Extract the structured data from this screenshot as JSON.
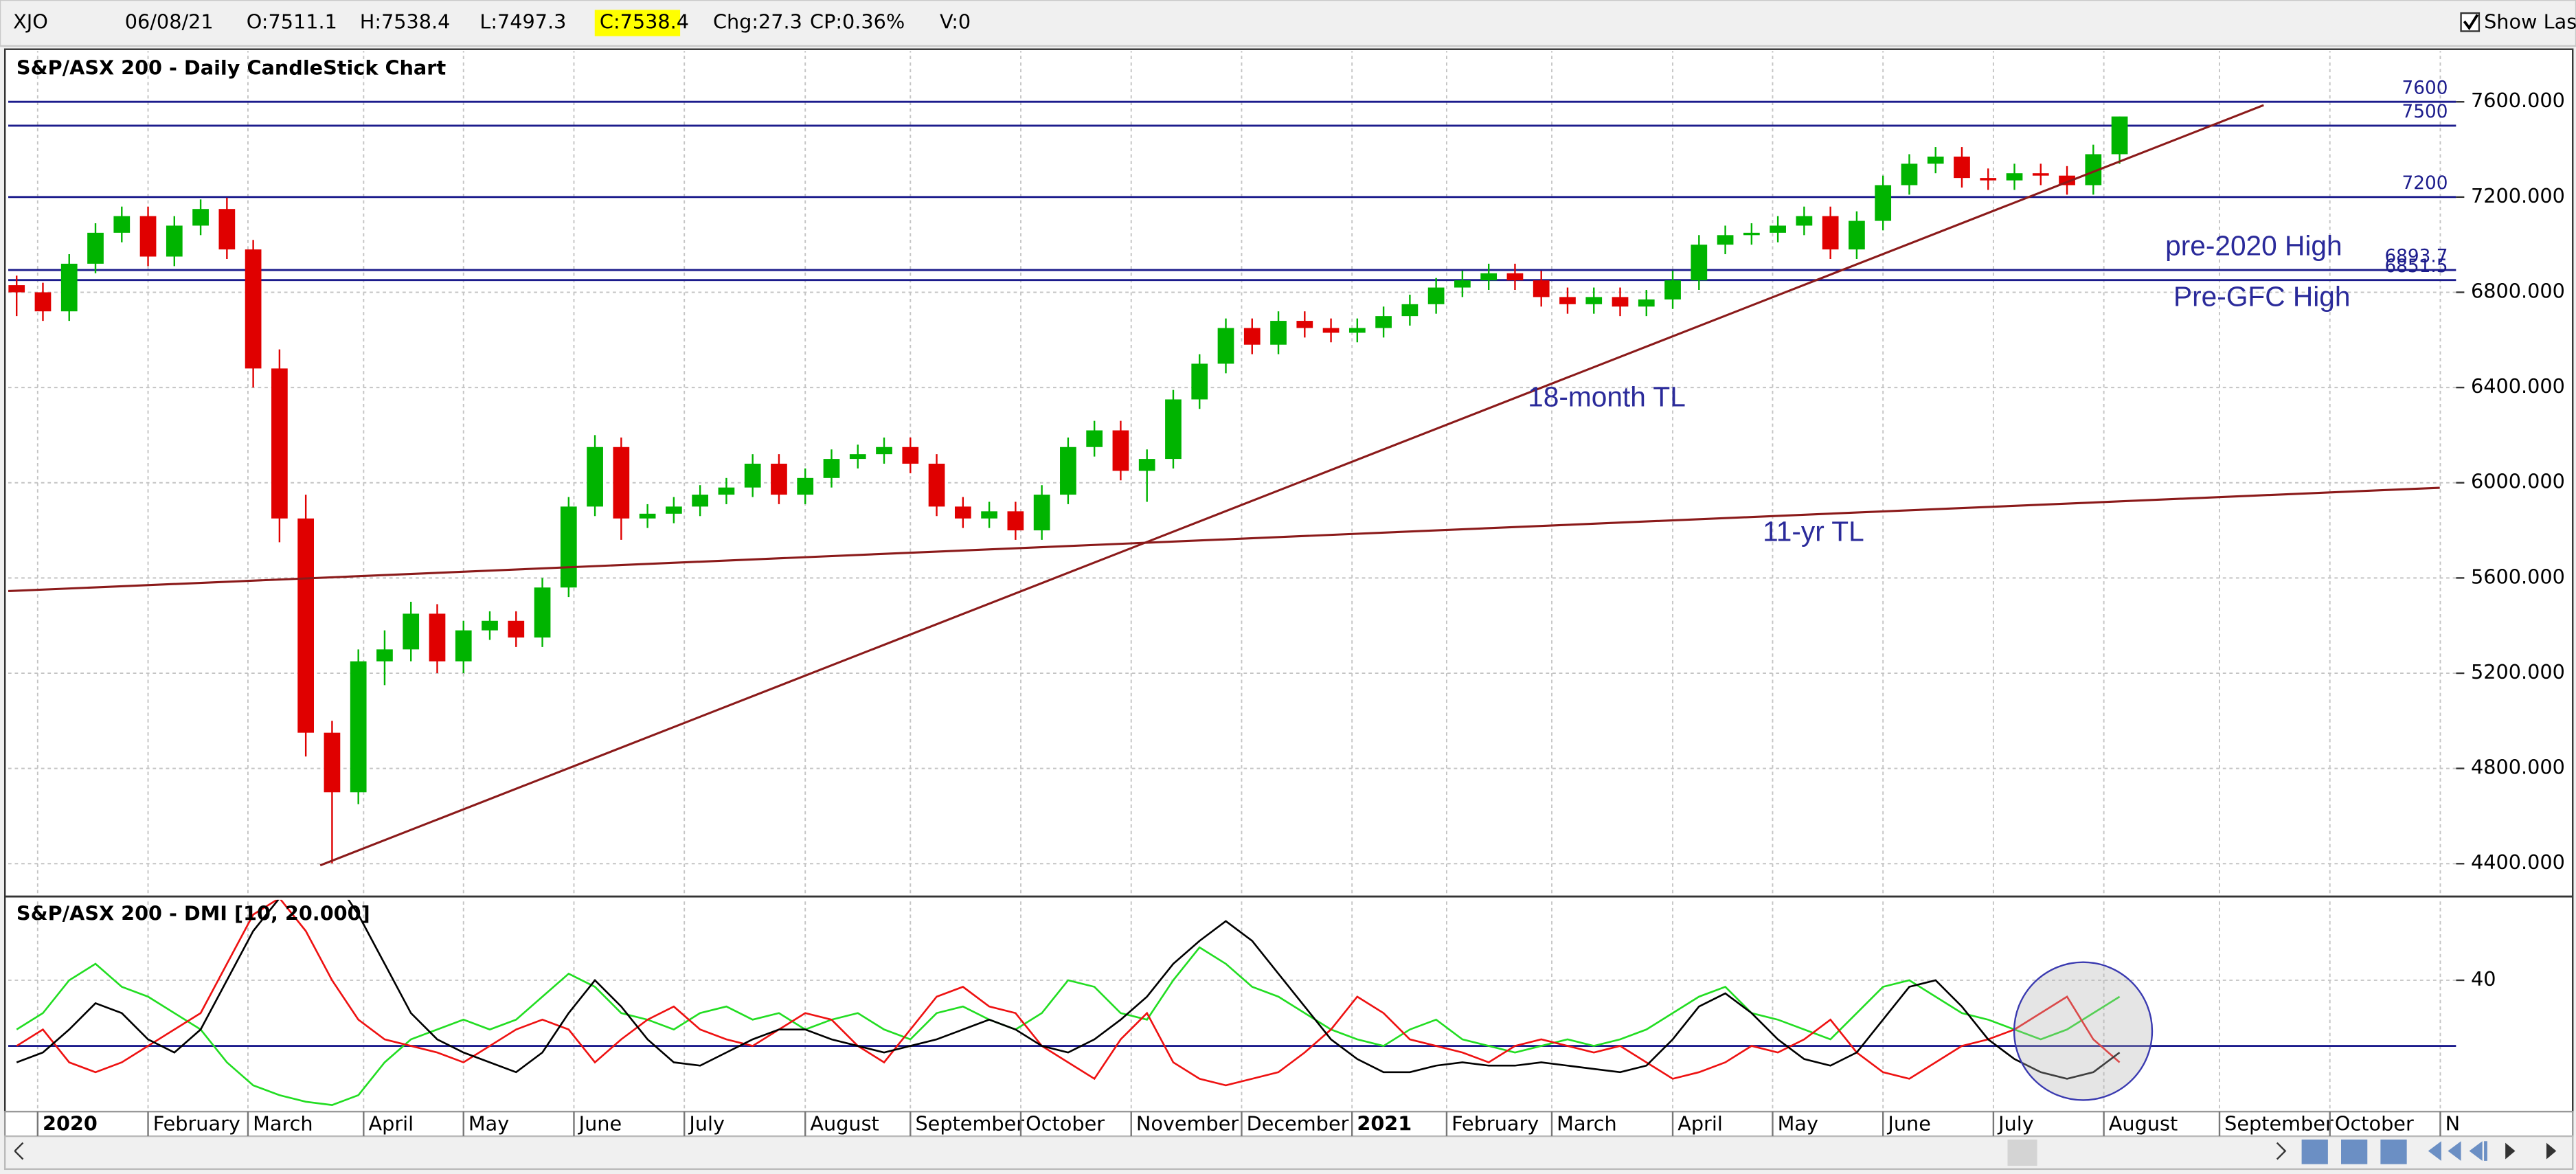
{
  "header": {
    "symbol": "XJO",
    "date": "06/08/21",
    "open": "O:7511.1",
    "high": "H:7538.4",
    "low": "L:7497.3",
    "close": "C:7538.4",
    "change": "Chg:27.3",
    "change_pct": "CP:0.36%",
    "volume": "V:0",
    "show_last": "Show Last"
  },
  "chart_data": [
    {
      "type": "candlestick",
      "title": "S&P/ASX 200 - Daily CandleStick Chart",
      "x": [
        -4,
        1,
        6,
        11,
        16,
        21,
        26,
        31,
        36,
        41,
        46,
        51,
        56,
        61,
        66,
        71,
        76,
        81,
        86,
        91,
        96,
        101,
        106,
        111,
        116,
        121,
        126,
        131,
        136,
        141,
        146,
        151,
        156,
        161,
        166,
        171,
        176,
        181,
        186,
        191,
        196,
        201,
        206,
        211,
        216,
        221,
        226,
        231,
        236,
        241,
        246,
        251,
        256,
        261,
        266,
        271,
        276,
        281,
        286,
        291,
        296,
        301,
        306,
        311,
        316,
        321,
        326,
        331,
        336,
        341,
        346,
        351,
        356,
        361,
        366,
        371,
        376,
        381,
        386,
        391,
        396
      ],
      "open": [
        6830,
        6800,
        6720,
        6920,
        7050,
        7120,
        6950,
        7080,
        7150,
        6980,
        6480,
        5850,
        4950,
        4700,
        5250,
        5300,
        5450,
        5250,
        5380,
        5420,
        5350,
        5560,
        5900,
        6150,
        5850,
        5870,
        5900,
        5950,
        5980,
        6080,
        5950,
        6020,
        6100,
        6120,
        6150,
        6080,
        5900,
        5850,
        5880,
        5800,
        5950,
        6150,
        6220,
        6050,
        6100,
        6350,
        6500,
        6650,
        6580,
        6680,
        6650,
        6630,
        6650,
        6700,
        6750,
        6820,
        6850,
        6880,
        6850,
        6780,
        6750,
        6780,
        6740,
        6770,
        6850,
        7000,
        7040,
        7050,
        7080,
        7120,
        6980,
        7100,
        7250,
        7340,
        7370,
        7280,
        7270,
        7300,
        7290,
        7250,
        7380
      ],
      "high": [
        6870,
        6840,
        6960,
        7090,
        7160,
        7160,
        7120,
        7190,
        7197,
        7020,
        6560,
        5950,
        5000,
        5300,
        5380,
        5500,
        5490,
        5420,
        5460,
        5460,
        5600,
        5940,
        6200,
        6190,
        5910,
        5940,
        5990,
        6020,
        6120,
        6120,
        6060,
        6140,
        6160,
        6190,
        6190,
        6120,
        5940,
        5920,
        5920,
        5990,
        6190,
        6260,
        6260,
        6140,
        6390,
        6540,
        6690,
        6690,
        6720,
        6720,
        6690,
        6690,
        6740,
        6790,
        6860,
        6890,
        6920,
        6920,
        6890,
        6820,
        6820,
        6820,
        6810,
        6890,
        7040,
        7080,
        7090,
        7120,
        7160,
        7160,
        7140,
        7290,
        7380,
        7410,
        7410,
        7320,
        7340,
        7340,
        7330,
        7420,
        7538.4
      ],
      "low": [
        6700,
        6680,
        6680,
        6880,
        7010,
        6910,
        6910,
        7040,
        6940,
        6400,
        5750,
        4850,
        4402,
        4650,
        5150,
        5250,
        5200,
        5200,
        5340,
        5310,
        5310,
        5520,
        5860,
        5760,
        5810,
        5830,
        5860,
        5910,
        5940,
        5910,
        5910,
        5980,
        6060,
        6080,
        6040,
        5860,
        5810,
        5810,
        5760,
        5760,
        5910,
        6110,
        6010,
        5920,
        6060,
        6310,
        6460,
        6540,
        6540,
        6610,
        6590,
        6590,
        6610,
        6660,
        6710,
        6780,
        6810,
        6810,
        6740,
        6710,
        6710,
        6700,
        6700,
        6730,
        6810,
        6960,
        7000,
        7010,
        7040,
        6940,
        6940,
        7060,
        7210,
        7300,
        7240,
        7230,
        7230,
        7250,
        7210,
        7210,
        7340
      ],
      "close": [
        6800,
        6720,
        6920,
        7050,
        7120,
        6950,
        7080,
        7150,
        6980,
        6480,
        5850,
        4950,
        4700,
        5250,
        5300,
        5450,
        5250,
        5380,
        5420,
        5350,
        5560,
        5900,
        6150,
        5850,
        5870,
        5900,
        5950,
        5980,
        6080,
        5950,
        6020,
        6100,
        6120,
        6150,
        6080,
        5900,
        5850,
        5880,
        5800,
        5950,
        6150,
        6220,
        6050,
        6100,
        6350,
        6500,
        6650,
        6580,
        6680,
        6650,
        6630,
        6650,
        6700,
        6750,
        6820,
        6850,
        6880,
        6850,
        6780,
        6750,
        6780,
        6740,
        6770,
        6850,
        7000,
        7040,
        7050,
        7080,
        7120,
        6980,
        7100,
        7250,
        7340,
        7370,
        7280,
        7270,
        7300,
        7290,
        7250,
        7380,
        7538.4
      ],
      "up_color": "#00b400",
      "down_color": "#e00000",
      "xlim": [
        -5.6,
        460
      ],
      "ylim": [
        4269,
        7807
      ],
      "yticks": [
        {
          "value": 4400,
          "label": "4400.000"
        },
        {
          "value": 4800,
          "label": "4800.000"
        },
        {
          "value": 5200,
          "label": "5200.000"
        },
        {
          "value": 5600,
          "label": "5600.000"
        },
        {
          "value": 6000,
          "label": "6000.000"
        },
        {
          "value": 6400,
          "label": "6400.000"
        },
        {
          "value": 6800,
          "label": "6800.000"
        },
        {
          "value": 7200,
          "label": "7200.000"
        },
        {
          "value": 7600,
          "label": "7600.000"
        }
      ],
      "grid": true,
      "hlines": {
        "values": [
          7600,
          7500,
          7200,
          6893.7,
          6851.5
        ],
        "color": "#1c1c8c"
      },
      "trendlines": [
        {
          "x": [
            53.75,
            423.4
          ],
          "y": [
            4393,
            7586
          ],
          "color": "#8b1a1a"
        },
        {
          "x": [
            -5.6,
            456.9
          ],
          "y": [
            5545,
            5979
          ],
          "color": "#8b1a1a"
        }
      ],
      "annotations": [
        "pre-2020 High",
        "Pre-GFC High",
        "18-month TL",
        "11-yr TL"
      ]
    },
    {
      "type": "line",
      "title": "S&P/ASX 200 - DMI [10, 20.000]",
      "x": [
        -4,
        1,
        6,
        11,
        16,
        21,
        26,
        31,
        36,
        41,
        46,
        51,
        56,
        61,
        66,
        71,
        76,
        81,
        86,
        91,
        96,
        101,
        106,
        111,
        116,
        121,
        126,
        131,
        136,
        141,
        146,
        151,
        156,
        161,
        166,
        171,
        176,
        181,
        186,
        191,
        196,
        201,
        206,
        211,
        216,
        221,
        226,
        231,
        236,
        241,
        246,
        251,
        256,
        261,
        266,
        271,
        276,
        281,
        286,
        291,
        296,
        301,
        306,
        311,
        316,
        321,
        326,
        331,
        336,
        341,
        346,
        351,
        356,
        361,
        366,
        371,
        376,
        381,
        386,
        391,
        396
      ],
      "series": [
        {
          "color": "#22dd22",
          "values": [
            25,
            30,
            40,
            45,
            38,
            35,
            30,
            25,
            15,
            8,
            5,
            3,
            2,
            5,
            15,
            22,
            25,
            28,
            25,
            28,
            35,
            42,
            38,
            30,
            28,
            25,
            30,
            32,
            28,
            30,
            25,
            28,
            30,
            25,
            22,
            30,
            32,
            28,
            25,
            30,
            40,
            38,
            30,
            28,
            40,
            50,
            45,
            38,
            35,
            30,
            25,
            22,
            20,
            25,
            28,
            22,
            20,
            18,
            20,
            22,
            20,
            22,
            25,
            30,
            35,
            38,
            30,
            28,
            25,
            22,
            30,
            38,
            40,
            35,
            30,
            28,
            25,
            22,
            25,
            30,
            35
          ]
        },
        {
          "color": "#ee1111",
          "values": [
            20,
            25,
            15,
            12,
            15,
            20,
            25,
            30,
            45,
            60,
            65,
            55,
            40,
            28,
            22,
            20,
            18,
            15,
            20,
            25,
            28,
            25,
            15,
            22,
            28,
            32,
            25,
            22,
            20,
            25,
            30,
            28,
            20,
            15,
            25,
            35,
            38,
            32,
            30,
            20,
            15,
            10,
            22,
            30,
            15,
            10,
            8,
            10,
            12,
            18,
            25,
            35,
            30,
            22,
            20,
            18,
            15,
            20,
            22,
            20,
            18,
            20,
            15,
            10,
            12,
            15,
            20,
            18,
            22,
            28,
            18,
            12,
            10,
            15,
            20,
            22,
            25,
            30,
            35,
            22,
            15
          ]
        },
        {
          "color": "#000000",
          "values": [
            15,
            18,
            25,
            33,
            30,
            22,
            18,
            25,
            40,
            55,
            65,
            70,
            72,
            60,
            45,
            30,
            22,
            18,
            15,
            12,
            18,
            30,
            40,
            32,
            22,
            15,
            14,
            18,
            22,
            25,
            25,
            22,
            20,
            18,
            20,
            22,
            25,
            28,
            25,
            20,
            18,
            22,
            28,
            35,
            45,
            52,
            58,
            52,
            42,
            32,
            22,
            16,
            12,
            12,
            14,
            15,
            14,
            14,
            15,
            14,
            13,
            12,
            14,
            22,
            32,
            36,
            30,
            22,
            16,
            14,
            18,
            28,
            38,
            40,
            32,
            22,
            16,
            12,
            10,
            12,
            18
          ]
        }
      ],
      "xlim": [
        -5.6,
        460
      ],
      "ylim": [
        0,
        65
      ],
      "yticks": [
        40
      ],
      "grid": true,
      "hlines": {
        "values": [
          20
        ],
        "color": "#1c1c8c"
      },
      "xticks": [
        {
          "value": 0,
          "label": "2020"
        },
        {
          "value": 21,
          "label": "February"
        },
        {
          "value": 40,
          "label": "March"
        },
        {
          "value": 62,
          "label": "April"
        },
        {
          "value": 81,
          "label": "May"
        },
        {
          "value": 102,
          "label": "June"
        },
        {
          "value": 123,
          "label": "July"
        },
        {
          "value": 146,
          "label": "August"
        },
        {
          "value": 166,
          "label": "September"
        },
        {
          "value": 187,
          "label": "October"
        },
        {
          "value": 208,
          "label": "November"
        },
        {
          "value": 229,
          "label": "December"
        },
        {
          "value": 250,
          "label": "2021"
        },
        {
          "value": 268,
          "label": "February"
        },
        {
          "value": 288,
          "label": "March"
        },
        {
          "value": 311,
          "label": "April"
        },
        {
          "value": 330,
          "label": "May"
        },
        {
          "value": 351,
          "label": "June"
        },
        {
          "value": 372,
          "label": "July"
        },
        {
          "value": 393,
          "label": "August"
        },
        {
          "value": 415,
          "label": "September"
        },
        {
          "value": 436,
          "label": "October"
        },
        {
          "value": 457,
          "label": "N"
        }
      ]
    }
  ]
}
